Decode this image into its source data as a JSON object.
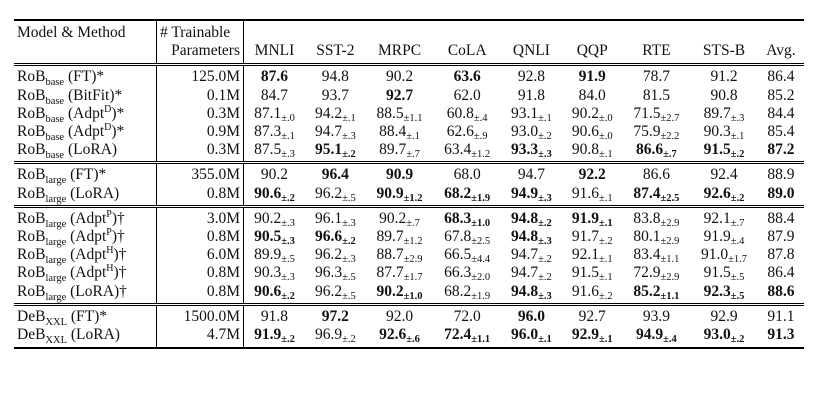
{
  "table": {
    "header": {
      "model": "Model & Method",
      "params": [
        "# Trainable",
        "Parameters"
      ],
      "columns": [
        "MNLI",
        "SST-2",
        "MRPC",
        "CoLA",
        "QNLI",
        "QQP",
        "RTE",
        "STS-B",
        "Avg."
      ]
    },
    "groups": [
      [
        {
          "model": {
            "name": "RoB",
            "sub": "base",
            "method": "(FT)*"
          },
          "params": "125.0M",
          "cells": [
            {
              "v": "87.6",
              "bold": true
            },
            {
              "v": "94.8"
            },
            {
              "v": "90.2"
            },
            {
              "v": "63.6",
              "bold": true
            },
            {
              "v": "92.8"
            },
            {
              "v": "91.9",
              "bold": true
            },
            {
              "v": "78.7"
            },
            {
              "v": "91.2"
            },
            {
              "v": "86.4"
            }
          ]
        },
        {
          "model": {
            "name": "RoB",
            "sub": "base",
            "method": "(BitFit)*"
          },
          "params": "0.1M",
          "cells": [
            {
              "v": "84.7"
            },
            {
              "v": "93.7"
            },
            {
              "v": "92.7",
              "bold": true
            },
            {
              "v": "62.0"
            },
            {
              "v": "91.8"
            },
            {
              "v": "84.0"
            },
            {
              "v": "81.5"
            },
            {
              "v": "90.8"
            },
            {
              "v": "85.2"
            }
          ]
        },
        {
          "model": {
            "name": "RoB",
            "sub": "base",
            "method": "(Adpt",
            "sup": "D",
            "tail": ")*"
          },
          "params": "0.3M",
          "cells": [
            {
              "v": "87.1",
              "pm": "±.0"
            },
            {
              "v": "94.2",
              "pm": "±.1"
            },
            {
              "v": "88.5",
              "pm": "±1.1"
            },
            {
              "v": "60.8",
              "pm": "±.4"
            },
            {
              "v": "93.1",
              "pm": "±.1"
            },
            {
              "v": "90.2",
              "pm": "±.0"
            },
            {
              "v": "71.5",
              "pm": "±2.7"
            },
            {
              "v": "89.7",
              "pm": "±.3"
            },
            {
              "v": "84.4"
            }
          ]
        },
        {
          "model": {
            "name": "RoB",
            "sub": "base",
            "method": "(Adpt",
            "sup": "D",
            "tail": ")*"
          },
          "params": "0.9M",
          "cells": [
            {
              "v": "87.3",
              "pm": "±.1"
            },
            {
              "v": "94.7",
              "pm": "±.3"
            },
            {
              "v": "88.4",
              "pm": "±.1"
            },
            {
              "v": "62.6",
              "pm": "±.9"
            },
            {
              "v": "93.0",
              "pm": "±.2"
            },
            {
              "v": "90.6",
              "pm": "±.0"
            },
            {
              "v": "75.9",
              "pm": "±2.2"
            },
            {
              "v": "90.3",
              "pm": "±.1"
            },
            {
              "v": "85.4"
            }
          ]
        },
        {
          "model": {
            "name": "RoB",
            "sub": "base",
            "method": "(LoRA)"
          },
          "params": "0.3M",
          "cells": [
            {
              "v": "87.5",
              "pm": "±.3"
            },
            {
              "v": "95.1",
              "pm": "±.2",
              "bold": true
            },
            {
              "v": "89.7",
              "pm": "±.7"
            },
            {
              "v": "63.4",
              "pm": "±1.2"
            },
            {
              "v": "93.3",
              "pm": "±.3",
              "bold": true
            },
            {
              "v": "90.8",
              "pm": "±.1"
            },
            {
              "v": "86.6",
              "pm": "±.7",
              "bold": true
            },
            {
              "v": "91.5",
              "pm": "±.2",
              "bold": true
            },
            {
              "v": "87.2",
              "bold": true
            }
          ]
        }
      ],
      [
        {
          "model": {
            "name": "RoB",
            "sub": "large",
            "method": "(FT)*"
          },
          "params": "355.0M",
          "cells": [
            {
              "v": "90.2"
            },
            {
              "v": "96.4",
              "bold": true
            },
            {
              "v": "90.9",
              "bold": true
            },
            {
              "v": "68.0"
            },
            {
              "v": "94.7"
            },
            {
              "v": "92.2",
              "bold": true
            },
            {
              "v": "86.6"
            },
            {
              "v": "92.4"
            },
            {
              "v": "88.9"
            }
          ]
        },
        {
          "model": {
            "name": "RoB",
            "sub": "large",
            "method": "(LoRA)"
          },
          "params": "0.8M",
          "cells": [
            {
              "v": "90.6",
              "pm": "±.2",
              "bold": true
            },
            {
              "v": "96.2",
              "pm": "±.5"
            },
            {
              "v": "90.9",
              "pm": "±1.2",
              "bold": true
            },
            {
              "v": "68.2",
              "pm": "±1.9",
              "bold": true
            },
            {
              "v": "94.9",
              "pm": "±.3",
              "bold": true
            },
            {
              "v": "91.6",
              "pm": "±.1"
            },
            {
              "v": "87.4",
              "pm": "±2.5",
              "bold": true
            },
            {
              "v": "92.6",
              "pm": "±.2",
              "bold": true
            },
            {
              "v": "89.0",
              "bold": true
            }
          ]
        }
      ],
      [
        {
          "model": {
            "name": "RoB",
            "sub": "large",
            "method": "(Adpt",
            "sup": "P",
            "tail": ")†"
          },
          "params": "3.0M",
          "cells": [
            {
              "v": "90.2",
              "pm": "±.3"
            },
            {
              "v": "96.1",
              "pm": "±.3"
            },
            {
              "v": "90.2",
              "pm": "±.7"
            },
            {
              "v": "68.3",
              "pm": "±1.0",
              "bold": true
            },
            {
              "v": "94.8",
              "pm": "±.2",
              "bold": true
            },
            {
              "v": "91.9",
              "pm": "±.1",
              "bold": true
            },
            {
              "v": "83.8",
              "pm": "±2.9"
            },
            {
              "v": "92.1",
              "pm": "±.7"
            },
            {
              "v": "88.4"
            }
          ]
        },
        {
          "model": {
            "name": "RoB",
            "sub": "large",
            "method": "(Adpt",
            "sup": "P",
            "tail": ")†"
          },
          "params": "0.8M",
          "cells": [
            {
              "v": "90.5",
              "pm": "±.3",
              "bold": true
            },
            {
              "v": "96.6",
              "pm": "±.2",
              "bold": true
            },
            {
              "v": "89.7",
              "pm": "±1.2"
            },
            {
              "v": "67.8",
              "pm": "±2.5"
            },
            {
              "v": "94.8",
              "pm": "±.3",
              "bold": true
            },
            {
              "v": "91.7",
              "pm": "±.2"
            },
            {
              "v": "80.1",
              "pm": "±2.9"
            },
            {
              "v": "91.9",
              "pm": "±.4"
            },
            {
              "v": "87.9"
            }
          ]
        },
        {
          "model": {
            "name": "RoB",
            "sub": "large",
            "method": "(Adpt",
            "sup": "H",
            "tail": ")†"
          },
          "params": "6.0M",
          "cells": [
            {
              "v": "89.9",
              "pm": "±.5"
            },
            {
              "v": "96.2",
              "pm": "±.3"
            },
            {
              "v": "88.7",
              "pm": "±2.9"
            },
            {
              "v": "66.5",
              "pm": "±4.4"
            },
            {
              "v": "94.7",
              "pm": "±.2"
            },
            {
              "v": "92.1",
              "pm": "±.1"
            },
            {
              "v": "83.4",
              "pm": "±1.1"
            },
            {
              "v": "91.0",
              "pm": "±1.7"
            },
            {
              "v": "87.8"
            }
          ]
        },
        {
          "model": {
            "name": "RoB",
            "sub": "large",
            "method": "(Adpt",
            "sup": "H",
            "tail": ")†"
          },
          "params": "0.8M",
          "cells": [
            {
              "v": "90.3",
              "pm": "±.3"
            },
            {
              "v": "96.3",
              "pm": "±.5"
            },
            {
              "v": "87.7",
              "pm": "±1.7"
            },
            {
              "v": "66.3",
              "pm": "±2.0"
            },
            {
              "v": "94.7",
              "pm": "±.2"
            },
            {
              "v": "91.5",
              "pm": "±.1"
            },
            {
              "v": "72.9",
              "pm": "±2.9"
            },
            {
              "v": "91.5",
              "pm": "±.5"
            },
            {
              "v": "86.4"
            }
          ]
        },
        {
          "model": {
            "name": "RoB",
            "sub": "large",
            "method": "(LoRA)†"
          },
          "params": "0.8M",
          "cells": [
            {
              "v": "90.6",
              "pm": "±.2",
              "bold": true
            },
            {
              "v": "96.2",
              "pm": "±.5"
            },
            {
              "v": "90.2",
              "pm": "±1.0",
              "bold": true
            },
            {
              "v": "68.2",
              "pm": "±1.9"
            },
            {
              "v": "94.8",
              "pm": "±.3",
              "bold": true
            },
            {
              "v": "91.6",
              "pm": "±.2"
            },
            {
              "v": "85.2",
              "pm": "±1.1",
              "bold": true
            },
            {
              "v": "92.3",
              "pm": "±.5",
              "bold": true
            },
            {
              "v": "88.6",
              "bold": true
            }
          ]
        }
      ],
      [
        {
          "model": {
            "name": "DeB",
            "sub": "XXL",
            "method": "(FT)*"
          },
          "params": "1500.0M",
          "cells": [
            {
              "v": "91.8"
            },
            {
              "v": "97.2",
              "bold": true
            },
            {
              "v": "92.0"
            },
            {
              "v": "72.0"
            },
            {
              "v": "96.0",
              "bold": true
            },
            {
              "v": "92.7"
            },
            {
              "v": "93.9"
            },
            {
              "v": "92.9"
            },
            {
              "v": "91.1"
            }
          ]
        },
        {
          "model": {
            "name": "DeB",
            "sub": "XXL",
            "method": "(LoRA)"
          },
          "params": "4.7M",
          "cells": [
            {
              "v": "91.9",
              "pm": "±.2",
              "bold": true
            },
            {
              "v": "96.9",
              "pm": "±.2"
            },
            {
              "v": "92.6",
              "pm": "±.6",
              "bold": true
            },
            {
              "v": "72.4",
              "pm": "±1.1",
              "bold": true
            },
            {
              "v": "96.0",
              "pm": "±.1",
              "bold": true
            },
            {
              "v": "92.9",
              "pm": "±.1",
              "bold": true
            },
            {
              "v": "94.9",
              "pm": "±.4",
              "bold": true
            },
            {
              "v": "93.0",
              "pm": "±.2",
              "bold": true
            },
            {
              "v": "91.3",
              "bold": true
            }
          ]
        }
      ]
    ]
  }
}
